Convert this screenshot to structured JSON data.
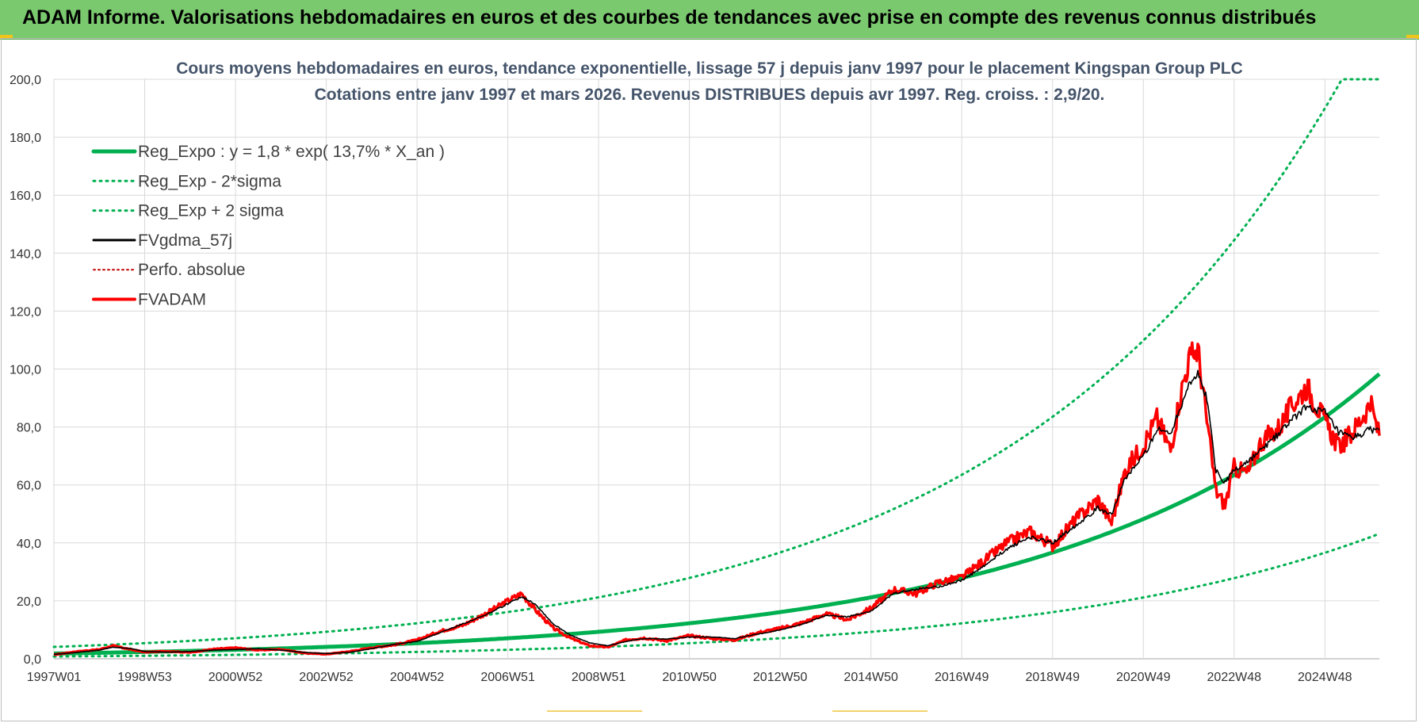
{
  "header": {
    "banner_title": "ADAM Informe. Valorisations hebdomadaires en euros et des courbes de tendances avec prise en compte des revenus connus distribués"
  },
  "colors": {
    "banner_bg": "#7bc96f",
    "reg_expo": "#00b050",
    "bands": "#00b050",
    "fvgdma": "#000000",
    "perfo": "#c00000",
    "fvadam": "#ff0000"
  },
  "chart_data": {
    "type": "line",
    "title_line1": "Cours moyens hebdomadaires en euros, tendance exponentielle, lissage 57 j depuis janv 1997  pour le  placement Kingspan Group PLC",
    "title_line2": "Cotations entre janv 1997 et mars 2026. Revenus DISTRIBUES depuis avr 1997. Reg. croiss. : 2,9/20.",
    "xlabel": "",
    "ylabel": "",
    "ylim": [
      0,
      200
    ],
    "xlim": [
      1997.0,
      2026.2
    ],
    "grid": true,
    "legend_position": "top-left",
    "y_ticks": [
      "0,0",
      "20,0",
      "40,0",
      "60,0",
      "80,0",
      "100,0",
      "120,0",
      "140,0",
      "160,0",
      "180,0",
      "200,0"
    ],
    "x_ticks": [
      {
        "label": "1997W01",
        "x": 1997.0
      },
      {
        "label": "1998W53",
        "x": 1999.0
      },
      {
        "label": "2000W52",
        "x": 2001.0
      },
      {
        "label": "2002W52",
        "x": 2003.0
      },
      {
        "label": "2004W52",
        "x": 2005.0
      },
      {
        "label": "2006W51",
        "x": 2007.0
      },
      {
        "label": "2008W51",
        "x": 2009.0
      },
      {
        "label": "2010W50",
        "x": 2011.0
      },
      {
        "label": "2012W50",
        "x": 2013.0
      },
      {
        "label": "2014W50",
        "x": 2015.0
      },
      {
        "label": "2016W49",
        "x": 2017.0
      },
      {
        "label": "2018W49",
        "x": 2019.0
      },
      {
        "label": "2020W49",
        "x": 2021.0
      },
      {
        "label": "2022W48",
        "x": 2023.0
      },
      {
        "label": "2024W48",
        "x": 2025.0
      }
    ],
    "series": [
      {
        "name": "Reg_Expo : y = 1,8 * exp( 13,7% *  X_an )",
        "style": "solid-thick",
        "formula": "1.8*exp(0.137*(x-1997))"
      },
      {
        "name": "Reg_Exp - 2*sigma",
        "style": "dotted",
        "formula": "0.79*exp(0.137*(x-1997))"
      },
      {
        "name": "Reg_Exp + 2 sigma",
        "style": "dotted",
        "cap": 200,
        "formula": "4.1*exp(0.137*(x-1997))"
      },
      {
        "name": "FVgdma_57j",
        "style": "solid-thin",
        "x": [
          1997.0,
          1997.5,
          1998.0,
          1998.3,
          1998.7,
          1999.0,
          1999.5,
          2000.0,
          2000.5,
          2001.0,
          2001.5,
          2002.0,
          2002.5,
          2003.0,
          2003.5,
          2004.0,
          2004.5,
          2005.0,
          2005.5,
          2006.0,
          2006.5,
          2007.0,
          2007.3,
          2007.6,
          2008.0,
          2008.4,
          2008.8,
          2009.2,
          2009.6,
          2010.0,
          2010.5,
          2011.0,
          2011.5,
          2012.0,
          2012.5,
          2013.0,
          2013.5,
          2014.0,
          2014.5,
          2015.0,
          2015.5,
          2016.0,
          2016.5,
          2017.0,
          2017.5,
          2018.0,
          2018.5,
          2019.0,
          2019.5,
          2020.0,
          2020.3,
          2020.6,
          2021.0,
          2021.3,
          2021.6,
          2021.8,
          2022.0,
          2022.2,
          2022.4,
          2022.6,
          2022.8,
          2023.0,
          2023.3,
          2023.6,
          2024.0,
          2024.3,
          2024.6,
          2025.0,
          2025.3,
          2025.6,
          2026.0,
          2026.2
        ],
        "y": [
          1.5,
          2.2,
          3.0,
          4.0,
          3.5,
          2.5,
          2.3,
          2.5,
          3.0,
          3.2,
          3.5,
          3.0,
          2.2,
          1.8,
          2.2,
          3.5,
          5.0,
          6.0,
          9.0,
          12.0,
          15.0,
          19.0,
          21.5,
          19.0,
          12.0,
          8.0,
          5.5,
          4.5,
          6.0,
          7.0,
          6.8,
          7.5,
          7.5,
          7.0,
          8.5,
          10.0,
          12.0,
          15.0,
          14.5,
          16.5,
          22.5,
          24.0,
          25.0,
          27.0,
          32.0,
          38.0,
          42.0,
          40.0,
          46.0,
          52.0,
          50.0,
          62.0,
          70.0,
          79.0,
          78.0,
          86.0,
          95.0,
          98.0,
          90.0,
          65.0,
          61.0,
          65.0,
          68.0,
          72.0,
          78.0,
          83.0,
          87.0,
          85.0,
          78.0,
          76.0,
          79.0,
          79.0
        ]
      },
      {
        "name": "Perfo. absolue",
        "style": "dotted",
        "values": []
      },
      {
        "name": "FVADAM",
        "style": "solid-thick",
        "x": [
          1997.0,
          1997.5,
          1998.0,
          1998.3,
          1998.7,
          1999.0,
          1999.5,
          2000.0,
          2000.5,
          2001.0,
          2001.5,
          2002.0,
          2002.5,
          2003.0,
          2003.5,
          2004.0,
          2004.5,
          2005.0,
          2005.5,
          2006.0,
          2006.5,
          2007.0,
          2007.3,
          2007.6,
          2008.0,
          2008.4,
          2008.8,
          2009.2,
          2009.6,
          2010.0,
          2010.5,
          2011.0,
          2011.5,
          2012.0,
          2012.5,
          2013.0,
          2013.5,
          2014.0,
          2014.5,
          2015.0,
          2015.5,
          2016.0,
          2016.5,
          2017.0,
          2017.5,
          2018.0,
          2018.5,
          2019.0,
          2019.5,
          2020.0,
          2020.3,
          2020.6,
          2021.0,
          2021.3,
          2021.6,
          2021.8,
          2022.0,
          2022.2,
          2022.4,
          2022.6,
          2022.8,
          2023.0,
          2023.3,
          2023.6,
          2024.0,
          2024.3,
          2024.6,
          2025.0,
          2025.3,
          2025.6,
          2026.0,
          2026.2
        ],
        "y": [
          1.4,
          2.5,
          3.2,
          4.5,
          3.2,
          2.3,
          2.6,
          2.2,
          3.3,
          3.8,
          3.0,
          3.3,
          2.0,
          1.6,
          2.5,
          3.8,
          4.8,
          6.5,
          9.5,
          11.5,
          15.5,
          20.0,
          22.5,
          17.0,
          10.5,
          7.0,
          4.5,
          4.0,
          6.5,
          7.2,
          6.2,
          8.0,
          7.0,
          6.5,
          9.0,
          10.5,
          12.5,
          15.5,
          13.5,
          17.5,
          24.0,
          22.5,
          26.5,
          28.0,
          34.0,
          40.0,
          44.0,
          39.0,
          48.0,
          55.0,
          47.0,
          65.0,
          74.0,
          83.0,
          72.0,
          90.0,
          103.0,
          107.0,
          82.0,
          58.0,
          53.0,
          66.0,
          64.0,
          75.0,
          80.0,
          88.0,
          94.0,
          82.0,
          73.0,
          78.0,
          88.0,
          77.0
        ]
      }
    ]
  }
}
